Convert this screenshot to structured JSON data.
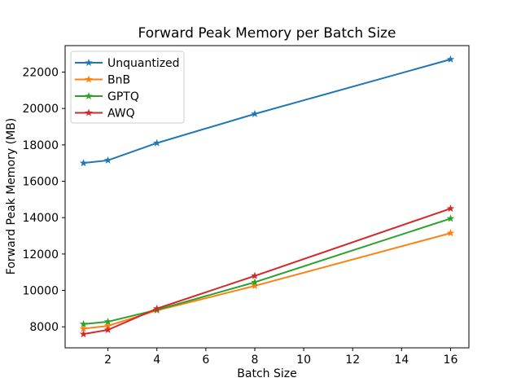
{
  "chart_data": {
    "type": "line",
    "title": "Forward Peak Memory per Batch Size",
    "xlabel": "Batch Size",
    "ylabel": "Forward Peak Memory (MB)",
    "x": [
      1,
      2,
      4,
      8,
      16
    ],
    "series": [
      {
        "name": "Unquantized",
        "color": "#1f77b4",
        "values": [
          17000,
          17150,
          18100,
          19700,
          22700
        ]
      },
      {
        "name": "BnB",
        "color": "#ff7f0e",
        "values": [
          7900,
          8050,
          8900,
          10250,
          13150
        ]
      },
      {
        "name": "GPTQ",
        "color": "#2ca02c",
        "values": [
          8150,
          8280,
          8930,
          10450,
          13950
        ]
      },
      {
        "name": "AWQ",
        "color": "#d62728",
        "values": [
          7600,
          7830,
          9000,
          10800,
          14500
        ]
      }
    ],
    "marker": "star",
    "xticks": [
      2,
      4,
      6,
      8,
      10,
      12,
      14,
      16
    ],
    "yticks": [
      8000,
      10000,
      12000,
      14000,
      16000,
      18000,
      20000,
      22000
    ],
    "xlim": [
      0.25,
      16.75
    ],
    "ylim": [
      6845,
      23455
    ],
    "grid": false,
    "legend_position": "upper left",
    "axis_color": "#000000",
    "background_color": "#ffffff",
    "legend_border_color": "#cccccc"
  }
}
